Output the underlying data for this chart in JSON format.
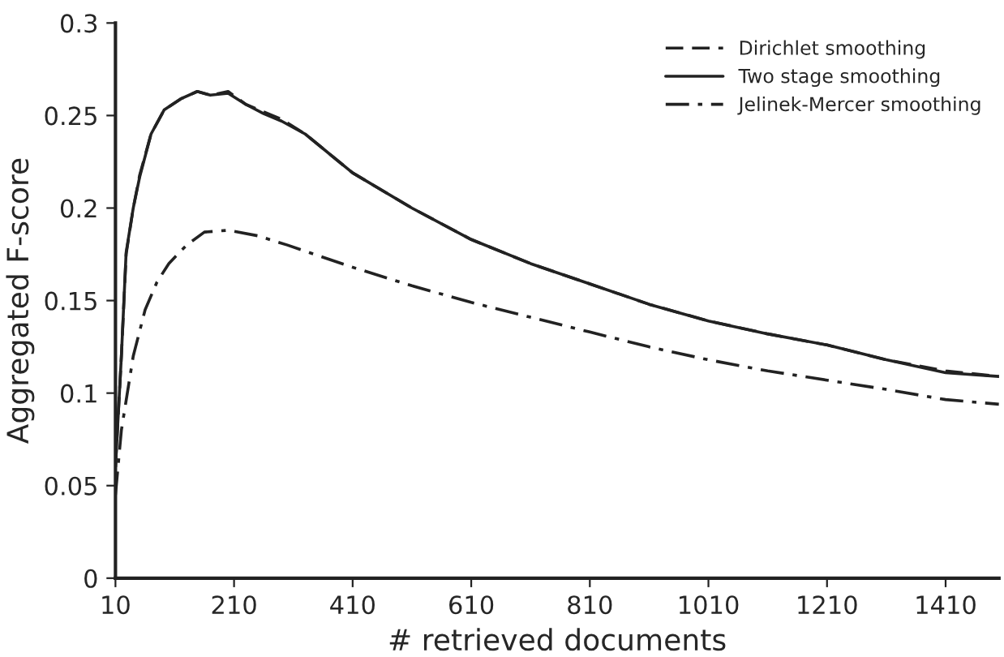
{
  "chart_data": {
    "type": "line",
    "xlabel": "# retrieved documents",
    "ylabel": "Aggregated F-score",
    "xlim": [
      10,
      1500
    ],
    "xticks": [
      10,
      210,
      410,
      610,
      810,
      1010,
      1210,
      1410
    ],
    "ylim": [
      0,
      0.3
    ],
    "yticks": [
      0,
      0.05,
      0.1,
      0.15,
      0.2,
      0.25,
      0.3
    ],
    "grid": false,
    "legend": "top right",
    "marker": "none",
    "series": [
      {
        "name": "Dirichlet smoothing",
        "color": "#222222",
        "line_style": "dashed",
        "x": [
          10,
          20,
          28,
          40,
          51,
          70,
          92,
          120,
          148,
          170,
          200,
          230,
          260,
          290,
          330,
          410,
          510,
          610,
          710,
          810,
          910,
          1010,
          1110,
          1210,
          1310,
          1410,
          1500
        ],
        "values": [
          0.06,
          0.12,
          0.175,
          0.2,
          0.218,
          0.24,
          0.253,
          0.259,
          0.263,
          0.261,
          0.263,
          0.256,
          0.252,
          0.248,
          0.24,
          0.219,
          0.2,
          0.183,
          0.17,
          0.159,
          0.148,
          0.139,
          0.132,
          0.126,
          0.118,
          0.112,
          0.109
        ]
      },
      {
        "name": "Two stage smoothing",
        "color": "#222222",
        "line_style": "solid",
        "x": [
          10,
          20,
          28,
          40,
          51,
          70,
          92,
          120,
          148,
          170,
          200,
          230,
          260,
          290,
          330,
          410,
          510,
          610,
          710,
          810,
          910,
          1010,
          1110,
          1210,
          1310,
          1410,
          1500
        ],
        "values": [
          0.06,
          0.12,
          0.176,
          0.2,
          0.217,
          0.24,
          0.253,
          0.259,
          0.263,
          0.261,
          0.262,
          0.256,
          0.251,
          0.247,
          0.24,
          0.219,
          0.2,
          0.183,
          0.17,
          0.159,
          0.148,
          0.139,
          0.132,
          0.126,
          0.118,
          0.111,
          0.109
        ]
      },
      {
        "name": "Jelinek-Mercer smoothing",
        "color": "#222222",
        "line_style": "dashdot",
        "x": [
          10,
          20,
          40,
          60,
          80,
          100,
          130,
          160,
          200,
          250,
          300,
          410,
          510,
          610,
          710,
          810,
          910,
          1010,
          1110,
          1210,
          1310,
          1410,
          1500
        ],
        "values": [
          0.045,
          0.08,
          0.12,
          0.145,
          0.16,
          0.17,
          0.18,
          0.187,
          0.188,
          0.185,
          0.18,
          0.168,
          0.158,
          0.149,
          0.141,
          0.133,
          0.125,
          0.118,
          0.112,
          0.107,
          0.102,
          0.0965,
          0.094
        ]
      }
    ]
  }
}
